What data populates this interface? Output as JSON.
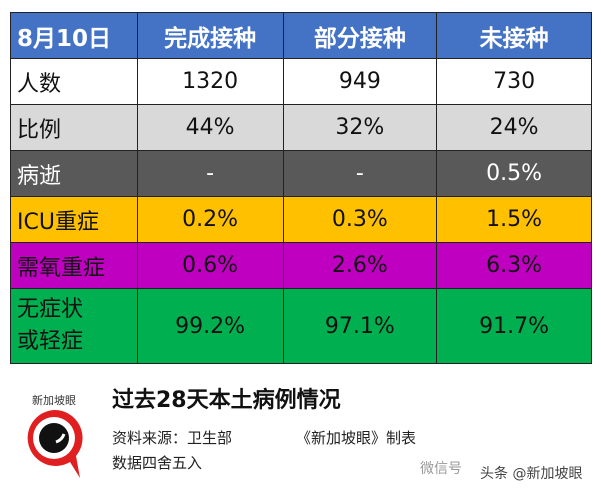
{
  "table": {
    "headers": [
      "8月10日",
      "完成接种",
      "部分接种",
      "未接种"
    ],
    "rows": [
      {
        "label": "人数",
        "values": [
          "1320",
          "949",
          "730"
        ]
      },
      {
        "label": "比例",
        "values": [
          "44%",
          "32%",
          "24%"
        ]
      },
      {
        "label": "病逝",
        "values": [
          "-",
          "-",
          "0.5%"
        ]
      },
      {
        "label": "ICU重症",
        "values": [
          "0.2%",
          "0.3%",
          "1.5%"
        ]
      },
      {
        "label": "需氧重症",
        "values": [
          "0.6%",
          "2.6%",
          "6.3%"
        ]
      },
      {
        "label_line1": "无症状",
        "label_line2": "或轻症",
        "values": [
          "99.2%",
          "97.1%",
          "91.7%"
        ]
      }
    ]
  },
  "footer": {
    "logo_text": "新加坡眼",
    "title": "过去28天本土病例情况",
    "source": "资料来源：卫生部",
    "maker": "《新加坡眼》制表",
    "rounding": "数据四舍五入",
    "watermark_wechat": "微信号",
    "watermark_toutiao": "头条 @新加坡眼"
  },
  "colors": {
    "header": "#4472c4",
    "ratio": "#d9d9d9",
    "death": "#595959",
    "icu": "#ffc000",
    "oxygen": "#c000c0",
    "mild": "#00b050"
  }
}
